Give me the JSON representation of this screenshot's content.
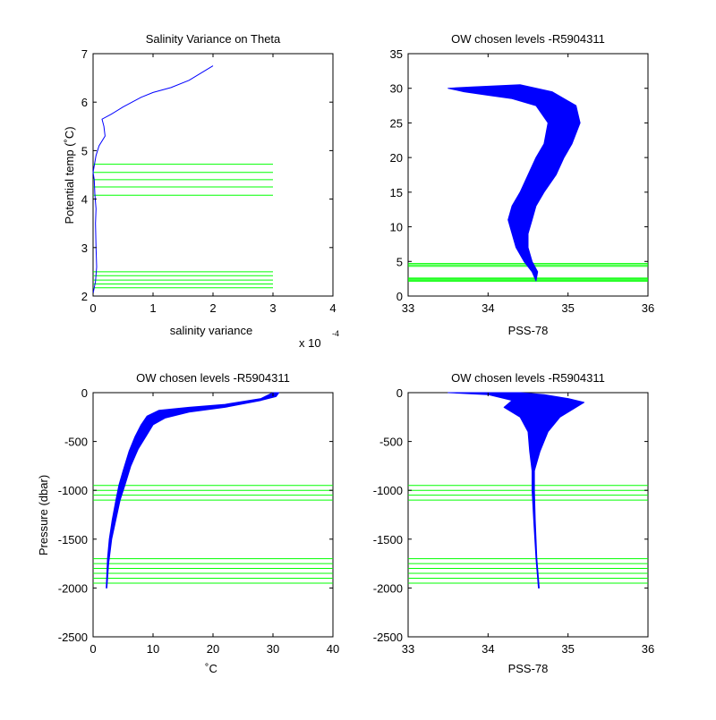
{
  "figure": {
    "background": "#ffffff"
  },
  "colors": {
    "profile": "#0000ff",
    "levels": "#00ff00",
    "axes": "#000000"
  },
  "chart_data": [
    {
      "type": "line",
      "title": "Salinity Variance on Theta",
      "xlabel": "salinity variance",
      "ylabel": "Potential temp (˚C)",
      "xlim": [
        0,
        4
      ],
      "ylim": [
        2,
        7
      ],
      "xticks": [
        0,
        1,
        2,
        3,
        4
      ],
      "yticks": [
        2,
        3,
        4,
        5,
        6,
        7
      ],
      "x_exponent_base": "x 10",
      "x_exponent_power": "-4",
      "series": [
        {
          "color": "#0000ff",
          "points": [
            [
              0.0,
              2.05
            ],
            [
              0.04,
              2.3
            ],
            [
              0.06,
              2.6
            ],
            [
              0.05,
              3.0
            ],
            [
              0.04,
              3.5
            ],
            [
              0.05,
              3.8
            ],
            [
              0.03,
              4.1
            ],
            [
              0.02,
              4.4
            ],
            [
              0.0,
              4.55
            ],
            [
              0.05,
              4.9
            ],
            [
              0.1,
              5.1
            ],
            [
              0.2,
              5.3
            ],
            [
              0.18,
              5.5
            ],
            [
              0.15,
              5.65
            ],
            [
              0.3,
              5.75
            ],
            [
              0.5,
              5.9
            ],
            [
              0.8,
              6.1
            ],
            [
              1.0,
              6.2
            ],
            [
              1.3,
              6.3
            ],
            [
              1.6,
              6.45
            ],
            [
              2.0,
              6.75
            ]
          ]
        }
      ],
      "hlines": {
        "values": [
          4.72,
          4.55,
          4.4,
          4.25,
          4.08,
          2.5,
          2.42,
          2.33,
          2.25,
          2.17
        ],
        "xrange": [
          0,
          3
        ],
        "color": "#00ff00"
      }
    },
    {
      "type": "line",
      "title": "OW chosen levels -R5904311",
      "xlabel": "PSS-78",
      "ylabel": "",
      "xlim": [
        33,
        36
      ],
      "ylim": [
        0,
        35
      ],
      "xticks": [
        33,
        34,
        35,
        36
      ],
      "yticks": [
        0,
        5,
        10,
        15,
        20,
        25,
        30,
        35
      ],
      "profile_band": {
        "color": "#0000ff",
        "left": [
          [
            33.5,
            30.0
          ],
          [
            33.7,
            29.5
          ],
          [
            34.0,
            29.0
          ],
          [
            34.3,
            28.5
          ],
          [
            34.6,
            27.5
          ],
          [
            34.75,
            25.0
          ],
          [
            34.7,
            22.0
          ],
          [
            34.6,
            20.0
          ],
          [
            34.5,
            17.5
          ],
          [
            34.4,
            15.0
          ],
          [
            34.3,
            13.0
          ],
          [
            34.25,
            11.0
          ],
          [
            34.3,
            9.0
          ],
          [
            34.35,
            7.0
          ],
          [
            34.45,
            5.0
          ],
          [
            34.55,
            3.5
          ],
          [
            34.6,
            2.2
          ]
        ],
        "right": [
          [
            34.6,
            2.2
          ],
          [
            34.62,
            3.5
          ],
          [
            34.55,
            5.0
          ],
          [
            34.5,
            7.0
          ],
          [
            34.5,
            9.0
          ],
          [
            34.55,
            11.0
          ],
          [
            34.6,
            13.0
          ],
          [
            34.7,
            15.0
          ],
          [
            34.85,
            17.5
          ],
          [
            34.95,
            20.0
          ],
          [
            35.05,
            22.0
          ],
          [
            35.15,
            25.0
          ],
          [
            35.1,
            27.5
          ],
          [
            34.8,
            29.5
          ],
          [
            34.4,
            30.5
          ],
          [
            33.8,
            30.2
          ],
          [
            33.5,
            30.0
          ]
        ]
      },
      "hlines": {
        "values": [
          4.7,
          4.5,
          4.3,
          2.6,
          2.45,
          2.3,
          2.15
        ],
        "xrange": [
          33,
          36
        ],
        "color": "#00ff00"
      }
    },
    {
      "type": "line",
      "title": "OW chosen levels -R5904311",
      "xlabel": "˚C",
      "ylabel": "Pressure (dbar)",
      "xlim": [
        0,
        40
      ],
      "ylim": [
        -2500,
        0
      ],
      "xticks": [
        0,
        10,
        20,
        30,
        40
      ],
      "yticks": [
        -2500,
        -2000,
        -1500,
        -1000,
        -500,
        0
      ],
      "profile_band": {
        "color": "#0000ff",
        "left": [
          [
            2.2,
            -2000
          ],
          [
            2.4,
            -1700
          ],
          [
            2.7,
            -1500
          ],
          [
            3.2,
            -1300
          ],
          [
            3.8,
            -1100
          ],
          [
            4.3,
            -950
          ],
          [
            5.0,
            -800
          ],
          [
            6.0,
            -600
          ],
          [
            7.0,
            -450
          ],
          [
            8.0,
            -330
          ],
          [
            9.0,
            -240
          ],
          [
            11.0,
            -180
          ],
          [
            16.0,
            -150
          ],
          [
            22.0,
            -120
          ],
          [
            28.0,
            -60
          ],
          [
            30.0,
            0
          ]
        ],
        "right": [
          [
            31.0,
            0
          ],
          [
            30.5,
            -40
          ],
          [
            28.0,
            -80
          ],
          [
            22.0,
            -150
          ],
          [
            16.0,
            -200
          ],
          [
            12.0,
            -260
          ],
          [
            10.0,
            -330
          ],
          [
            8.8,
            -450
          ],
          [
            7.5,
            -580
          ],
          [
            6.3,
            -750
          ],
          [
            5.3,
            -950
          ],
          [
            4.5,
            -1100
          ],
          [
            3.8,
            -1300
          ],
          [
            3.1,
            -1500
          ],
          [
            2.6,
            -1750
          ],
          [
            2.3,
            -2000
          ]
        ]
      },
      "hlines": {
        "values": [
          -950,
          -1000,
          -1050,
          -1100,
          -1700,
          -1750,
          -1800,
          -1850,
          -1900,
          -1950
        ],
        "xrange": [
          0,
          40
        ],
        "color": "#00ff00"
      }
    },
    {
      "type": "line",
      "title": "OW chosen levels -R5904311",
      "xlabel": "PSS-78",
      "ylabel": "",
      "xlim": [
        33,
        36
      ],
      "ylim": [
        -2500,
        0
      ],
      "xticks": [
        33,
        34,
        35,
        36
      ],
      "yticks": [
        -2500,
        -2000,
        -1500,
        -1000,
        -500,
        0
      ],
      "profile_band": {
        "color": "#0000ff",
        "left": [
          [
            33.5,
            0
          ],
          [
            34.0,
            -20
          ],
          [
            34.3,
            -80
          ],
          [
            34.2,
            -150
          ],
          [
            34.4,
            -250
          ],
          [
            34.5,
            -400
          ],
          [
            34.52,
            -600
          ],
          [
            34.55,
            -800
          ],
          [
            34.55,
            -1000
          ],
          [
            34.57,
            -1300
          ],
          [
            34.6,
            -1700
          ],
          [
            34.63,
            -2000
          ]
        ],
        "right": [
          [
            34.64,
            -2000
          ],
          [
            34.61,
            -1700
          ],
          [
            34.59,
            -1300
          ],
          [
            34.58,
            -1000
          ],
          [
            34.58,
            -800
          ],
          [
            34.65,
            -600
          ],
          [
            34.75,
            -400
          ],
          [
            34.9,
            -250
          ],
          [
            35.2,
            -100
          ],
          [
            35.0,
            -60
          ],
          [
            34.7,
            -20
          ],
          [
            34.4,
            0
          ]
        ]
      },
      "hlines": {
        "values": [
          -950,
          -1000,
          -1050,
          -1100,
          -1700,
          -1750,
          -1800,
          -1850,
          -1900,
          -1950
        ],
        "xrange": [
          33,
          36
        ],
        "color": "#00ff00"
      }
    }
  ]
}
